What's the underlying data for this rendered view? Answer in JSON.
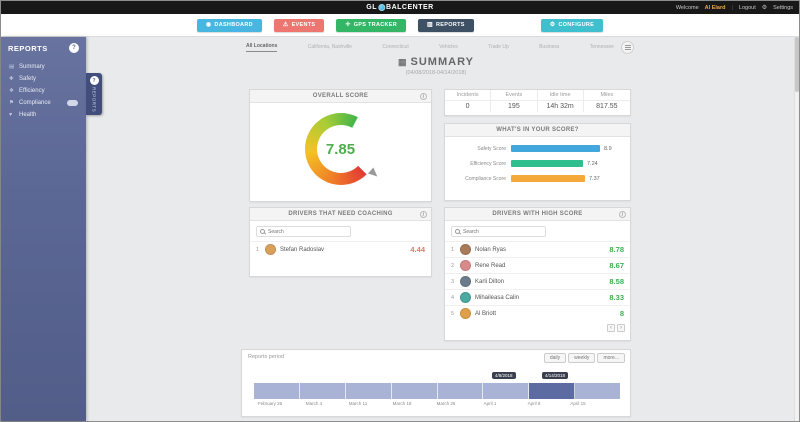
{
  "topbar": {
    "logo_prefix": "GL",
    "logo_suffix": "BALCENTER",
    "welcome": "Welcome",
    "username": "Al Elard",
    "divider": "|",
    "logout": "Logout",
    "settings_icon": "⚙",
    "settings": "Settings"
  },
  "nav": {
    "items": [
      {
        "label": "DASHBOARD",
        "icon": "◉",
        "color": "#47b6e0"
      },
      {
        "label": "EVENTS",
        "icon": "⚠",
        "color": "#ed7670"
      },
      {
        "label": "GPS TRACKER",
        "icon": "✛",
        "color": "#33b665"
      },
      {
        "label": "REPORTS",
        "icon": "▥",
        "color": "#3e5064"
      },
      {
        "label": "CONFIGURE",
        "icon": "⚙",
        "color": "#40c0cf"
      }
    ]
  },
  "sidebar": {
    "title": "REPORTS",
    "items": [
      {
        "label": "Summary",
        "icon": "▤"
      },
      {
        "label": "Safety",
        "icon": "✚"
      },
      {
        "label": "Efficiency",
        "icon": "❖"
      },
      {
        "label": "Compliance",
        "icon": "⚑"
      },
      {
        "label": "Health",
        "icon": "♥"
      }
    ]
  },
  "side_tab": {
    "label": "REPORTS"
  },
  "tabs": {
    "items": [
      {
        "label": "All Locations"
      },
      {
        "label": "California, Nashville"
      },
      {
        "label": "Connecticut"
      },
      {
        "label": "Vehicles"
      },
      {
        "label": "Trade Up"
      },
      {
        "label": "Business"
      },
      {
        "label": "Tennessee"
      }
    ]
  },
  "summary": {
    "icon": "▦",
    "title": "SUMMARY",
    "subtitle": "(04/08/2018-04/14/2018)"
  },
  "overall_score": {
    "title": "OVERALL SCORE",
    "value": "7.85"
  },
  "stats": {
    "headers": [
      "Incidents",
      "Events",
      "Idle time",
      "Miles"
    ],
    "values": [
      "0",
      "195",
      "14h 32m",
      "817.55"
    ]
  },
  "score_breakdown": {
    "title": "WHAT'S IN YOUR SCORE?",
    "rows": [
      {
        "label": "Safety Score",
        "value": "8.9",
        "pct": 89,
        "color": "#41a7dd"
      },
      {
        "label": "Efficiency Score",
        "value": "7.24",
        "pct": 72,
        "color": "#2fbf8f"
      },
      {
        "label": "Compliance Score",
        "value": "7.37",
        "pct": 74,
        "color": "#f5a93b"
      }
    ]
  },
  "coaching": {
    "title": "DRIVERS THAT NEED COACHING",
    "search_placeholder": "Search",
    "rows": [
      {
        "rank": "1",
        "name": "Stefan Radoslav",
        "score": "4.44",
        "avatar_color": "#d9a05a"
      }
    ]
  },
  "high_score": {
    "title": "DRIVERS WITH HIGH SCORE",
    "search_placeholder": "Search",
    "rows": [
      {
        "rank": "1",
        "name": "Nolan Ryas",
        "score": "8.78",
        "avatar_color": "#a87b5a"
      },
      {
        "rank": "2",
        "name": "Rene Read",
        "score": "8.67",
        "avatar_color": "#d98a8a"
      },
      {
        "rank": "3",
        "name": "Karli Dilton",
        "score": "8.58",
        "avatar_color": "#6b7b8c"
      },
      {
        "rank": "4",
        "name": "Mihaileasa Calin",
        "score": "8.33",
        "avatar_color": "#4aa9a0"
      },
      {
        "rank": "5",
        "name": "Al Briott",
        "score": "8",
        "avatar_color": "#e0a04a"
      }
    ],
    "pager": {
      "prev": "‹",
      "next": "›"
    }
  },
  "period": {
    "title": "Reports period",
    "buttons": [
      "daily",
      "weekly",
      "more..."
    ],
    "ticks": [
      "February 26",
      "March 4",
      "March 11",
      "March 18",
      "March 25",
      "April 1",
      "April 8",
      "April 15"
    ],
    "segments": 8,
    "selected_segment": 6,
    "selected_start_label": "4/8/2018",
    "selected_end_label": "4/14/2018",
    "bar_color": "#a9b3d5",
    "selected_color": "#5d6ba3"
  }
}
